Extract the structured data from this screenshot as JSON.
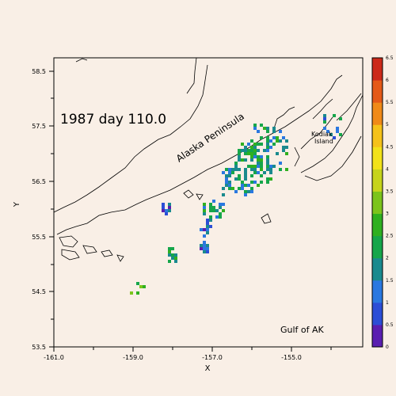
{
  "title": "1987 day 110.0",
  "labels": {
    "peninsula": "Alaska Peninsula",
    "island_line1": "Kodiak",
    "island_line2": "Island",
    "gulf": "Gulf of AK"
  },
  "axes": {
    "xlabel": "X",
    "ylabel": "Y",
    "x_ticks": [
      "-161.0",
      "-159.0",
      "-157.0",
      "-155.0"
    ],
    "y_ticks": [
      "58.5",
      "57.5",
      "56.5",
      "55.5",
      "54.5",
      "53.5"
    ]
  },
  "colorbar": {
    "ticks": [
      "0",
      "0.5",
      "1",
      "1.5",
      "2",
      "2.5",
      "3",
      "3.5",
      "4",
      "4.5",
      "5",
      "5.5",
      "6",
      "6.5"
    ],
    "colors": [
      "#5a1fb0",
      "#2c4ed6",
      "#2a78e0",
      "#1a8a8e",
      "#16a64a",
      "#2fb020",
      "#7cc41c",
      "#c6d41c",
      "#f2e21a",
      "#f5c21a",
      "#f08a18",
      "#e45a18",
      "#cc2a1a"
    ]
  },
  "chart_data": {
    "type": "heatmap",
    "title": "1987 day 110.0",
    "xlabel": "X",
    "ylabel": "Y",
    "xlim": [
      -161.0,
      -153.2
    ],
    "ylim": [
      53.5,
      58.7
    ],
    "value_range": [
      0,
      6.5
    ],
    "clusters": [
      {
        "lon": -155.6,
        "lat": 57.1,
        "value": 2.0
      },
      {
        "lon": -156.0,
        "lat": 56.8,
        "value": 2.2
      },
      {
        "lon": -156.4,
        "lat": 56.5,
        "value": 1.8
      },
      {
        "lon": -157.0,
        "lat": 56.0,
        "value": 2.0
      },
      {
        "lon": -157.2,
        "lat": 55.5,
        "value": 1.2
      },
      {
        "lon": -158.2,
        "lat": 56.0,
        "value": 1.0
      },
      {
        "lon": -158.0,
        "lat": 55.2,
        "value": 2.5
      },
      {
        "lon": -158.9,
        "lat": 54.6,
        "value": 2.5
      },
      {
        "lon": -154.0,
        "lat": 57.5,
        "value": 1.5
      }
    ]
  }
}
